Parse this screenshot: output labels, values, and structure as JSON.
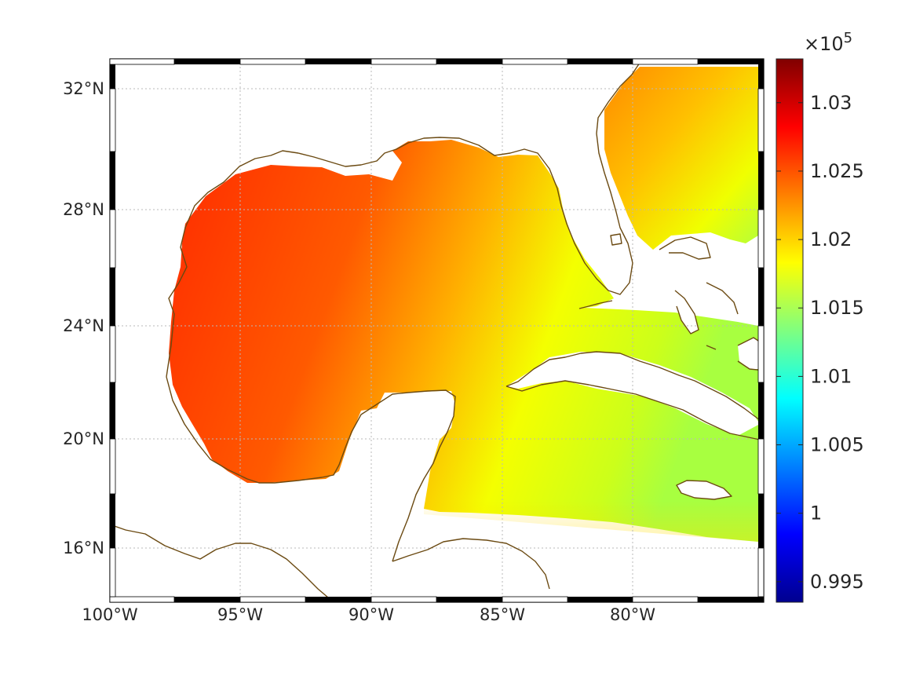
{
  "map": {
    "projection": "mercator",
    "lon_range": [
      -100,
      -75
    ],
    "lat_range": [
      14.3,
      32.8
    ],
    "grid": true,
    "lon_ticks": [
      {
        "lon": -100,
        "label": "100°W"
      },
      {
        "lon": -95,
        "label": "95°W"
      },
      {
        "lon": -90,
        "label": "90°W"
      },
      {
        "lon": -85,
        "label": "85°W"
      },
      {
        "lon": -80,
        "label": "80°W"
      }
    ],
    "lat_ticks": [
      {
        "lat": 16,
        "label": "16°N"
      },
      {
        "lat": 20,
        "label": "20°N"
      },
      {
        "lat": 24,
        "label": "24°N"
      },
      {
        "lat": 28,
        "label": "28°N"
      },
      {
        "lat": 32,
        "label": "32°N"
      }
    ],
    "frame_colors": [
      "#000000",
      "#ffffff"
    ],
    "coastline_color": "#6b4a12",
    "land_color": "#ffffff"
  },
  "field": {
    "colormap": "jet",
    "clim": [
      0.9935,
      1.0332
    ],
    "units_multiplier": "×10",
    "units_exponent": "5",
    "value_range_shown": [
      1.015,
      1.028
    ]
  },
  "colorbar": {
    "ticks": [
      {
        "value": 1.03,
        "label": "1.03"
      },
      {
        "value": 1.025,
        "label": "1.025"
      },
      {
        "value": 1.02,
        "label": "1.02"
      },
      {
        "value": 1.015,
        "label": "1.015"
      },
      {
        "value": 1.01,
        "label": "1.01"
      },
      {
        "value": 1.005,
        "label": "1.005"
      },
      {
        "value": 1.0,
        "label": "1"
      },
      {
        "value": 0.995,
        "label": "0.995"
      }
    ]
  }
}
